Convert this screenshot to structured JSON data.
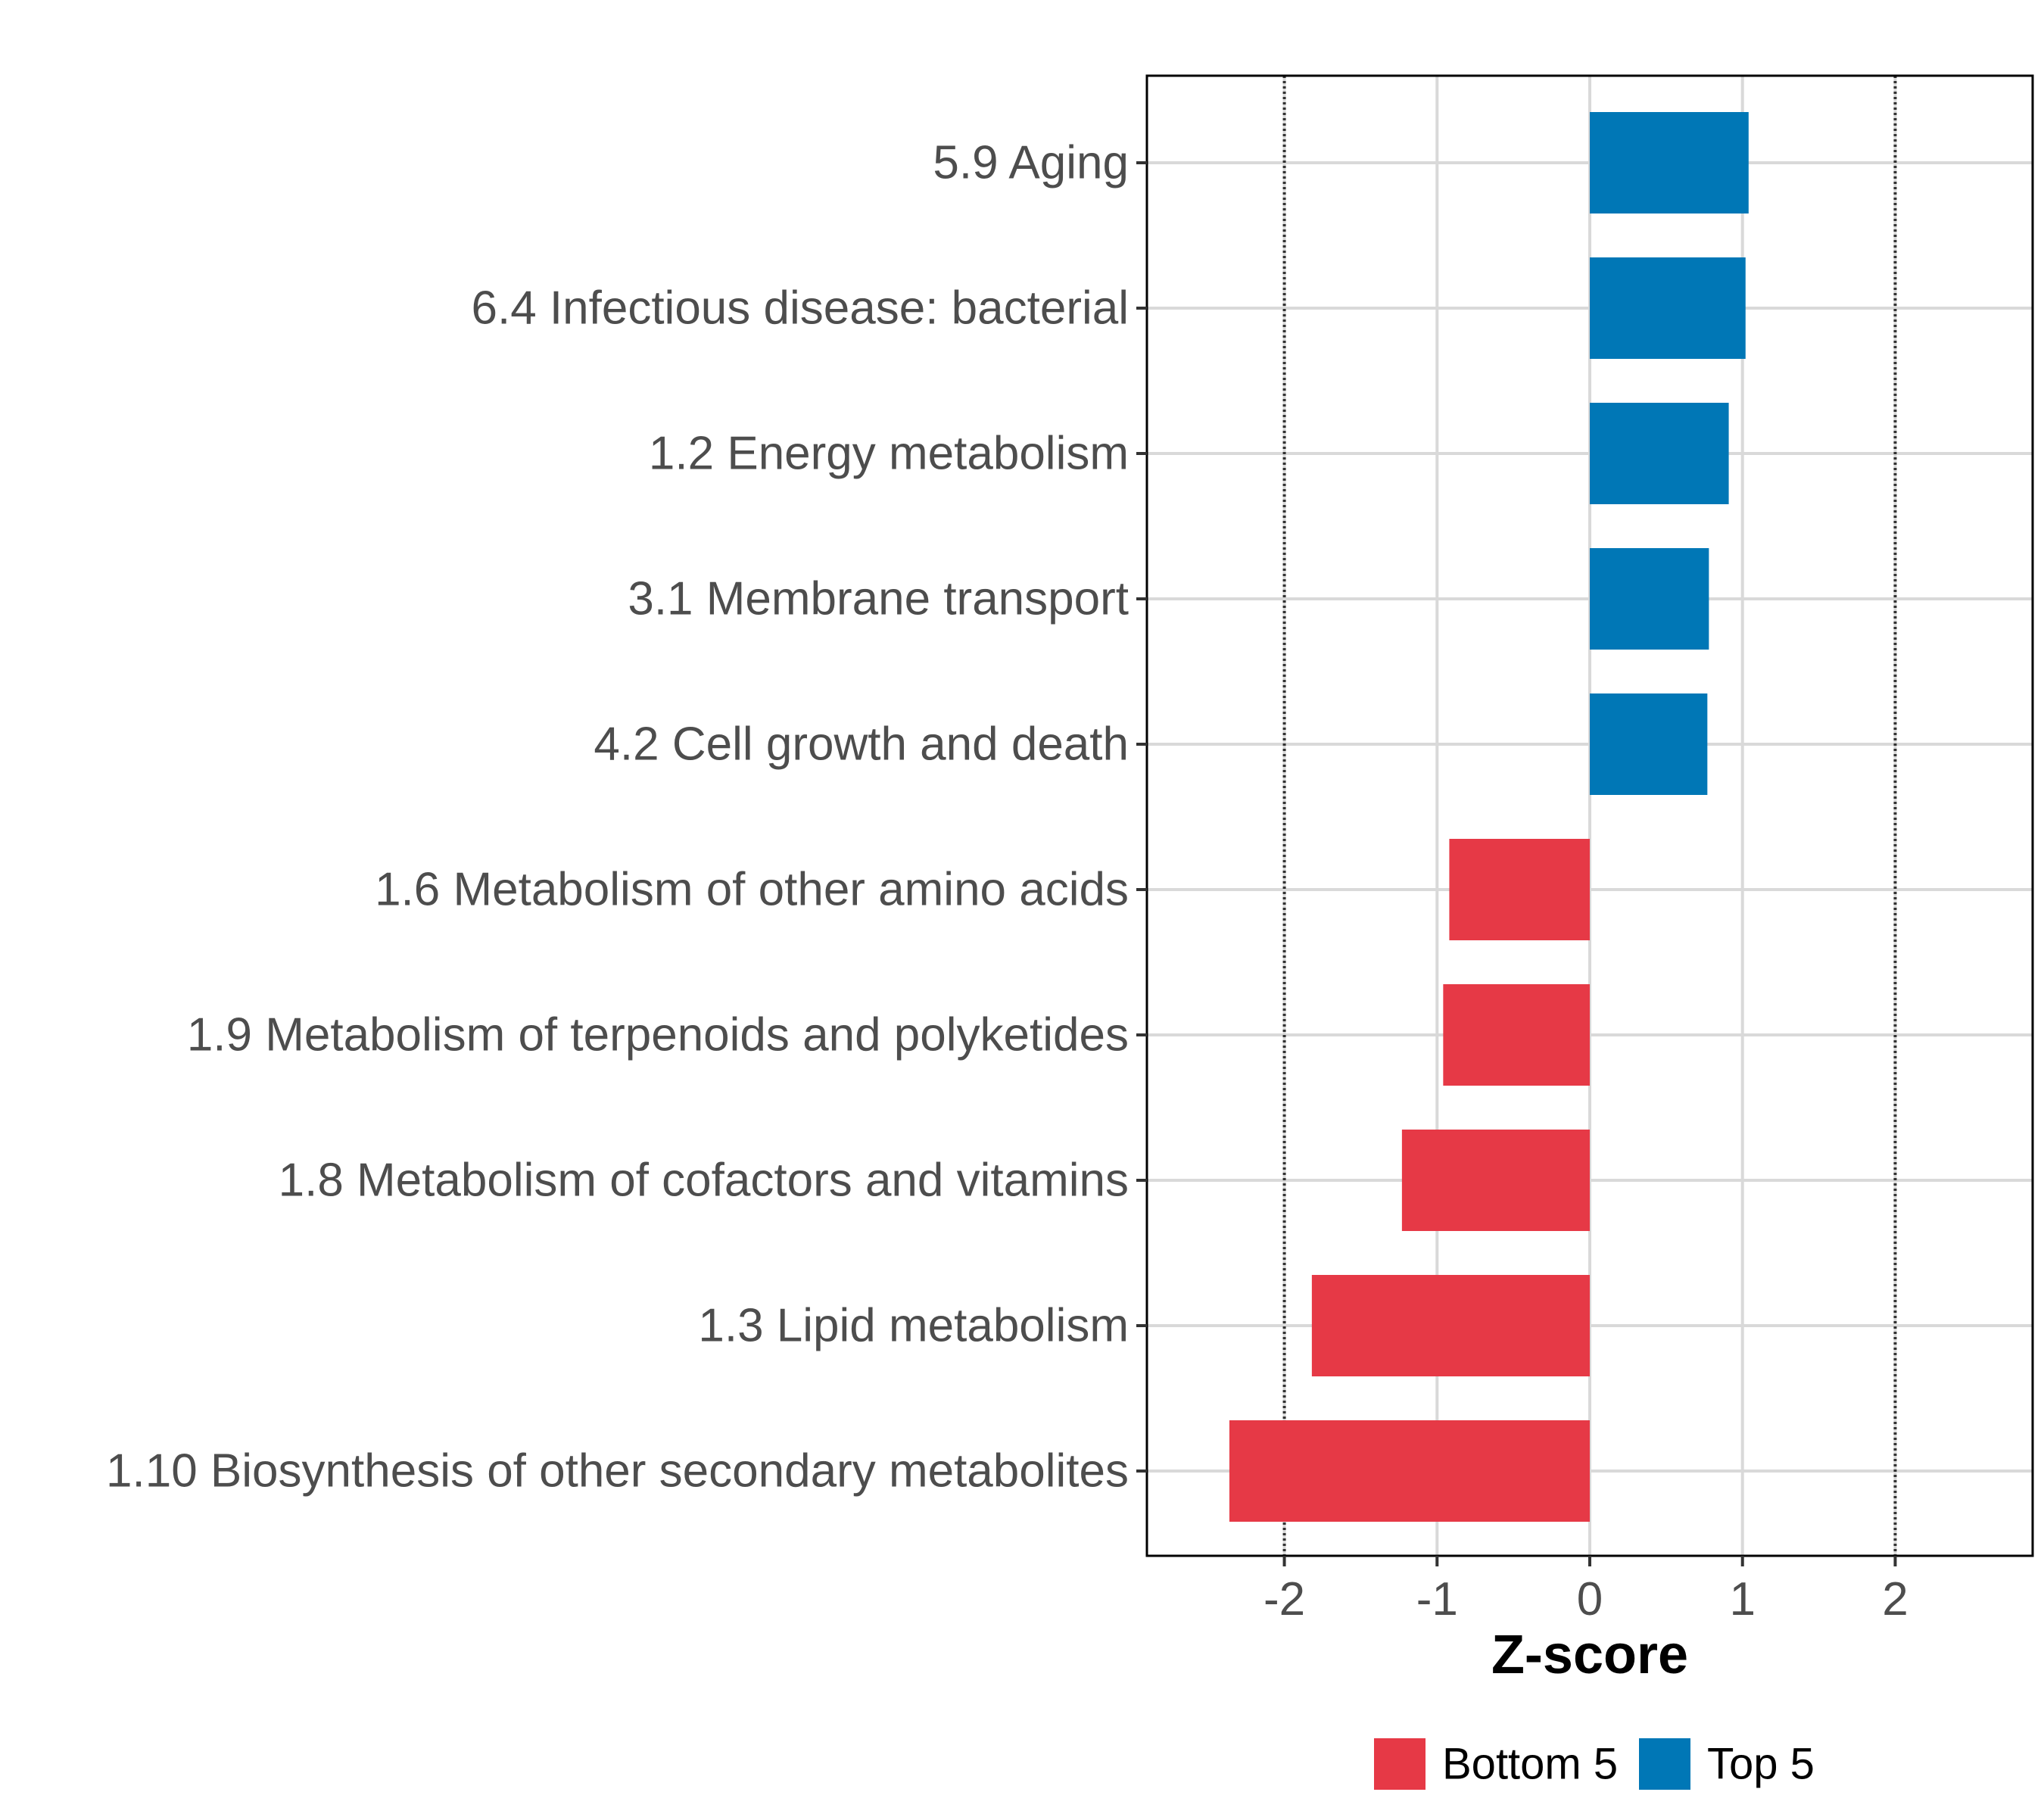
{
  "colors": {
    "bottom": "#e63946",
    "top": "#0077b6",
    "grid": "#d9d9d9",
    "text": "#4d4d4d",
    "refline": "#333333"
  },
  "chart_data": {
    "type": "bar",
    "orientation": "horizontal",
    "title": "",
    "xlabel": "Z-score",
    "ylabel": "",
    "xlim": [
      -2.9,
      2.9
    ],
    "xticks": [
      -2,
      -1,
      0,
      1,
      2
    ],
    "xtick_labels": [
      "-2",
      "-1",
      "0",
      "1",
      "2"
    ],
    "reference_lines": [
      -2,
      2
    ],
    "grid": true,
    "legend_position": "bottom",
    "legend": [
      {
        "name": "Bottom 5",
        "color": "#e63946"
      },
      {
        "name": "Top 5",
        "color": "#0077b6"
      }
    ],
    "categories": [
      "5.9 Aging",
      "6.4 Infectious disease: bacterial",
      "1.2 Energy metabolism",
      "3.1 Membrane transport",
      "4.2 Cell growth and death",
      "1.6 Metabolism of other amino acids",
      "1.9 Metabolism of terpenoids and polyketides",
      "1.8 Metabolism of cofactors and vitamins",
      "1.3 Lipid metabolism",
      "1.10 Biosynthesis of other secondary metabolites"
    ],
    "values": [
      1.04,
      1.02,
      0.91,
      0.78,
      0.77,
      -0.92,
      -0.96,
      -1.23,
      -1.82,
      -2.36
    ],
    "groups": [
      "Top 5",
      "Top 5",
      "Top 5",
      "Top 5",
      "Top 5",
      "Bottom 5",
      "Bottom 5",
      "Bottom 5",
      "Bottom 5",
      "Bottom 5"
    ]
  }
}
